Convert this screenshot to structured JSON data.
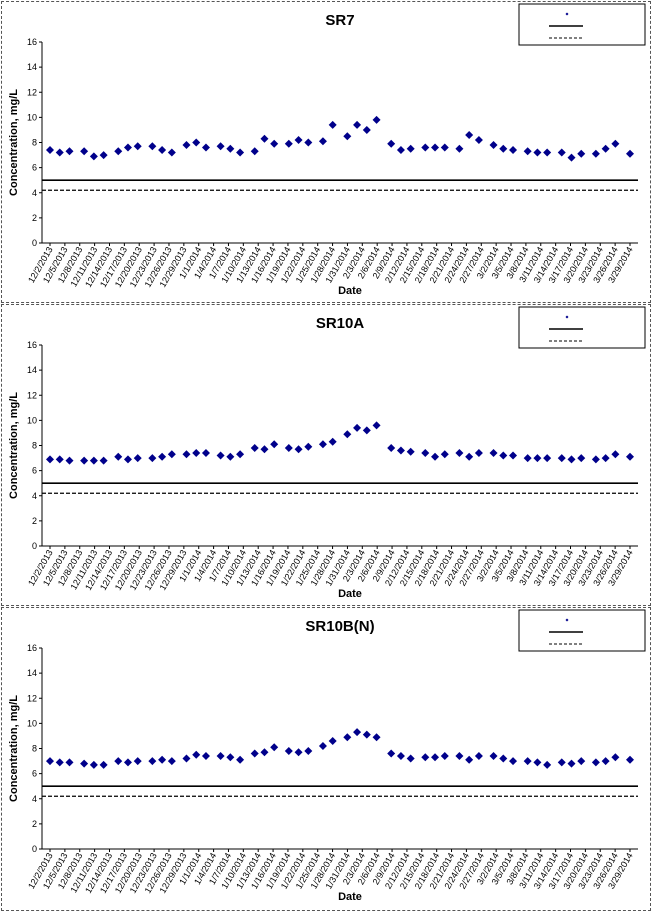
{
  "chart_data": [
    {
      "type": "scatter",
      "title": "SR7",
      "xlabel": "Date",
      "ylabel": "Concentration, mg/L",
      "ylim": [
        0,
        16
      ],
      "yticks": [
        0,
        2,
        4,
        6,
        8,
        10,
        12,
        14,
        16
      ],
      "xlim": [
        "2013-12-02",
        "2014-03-31"
      ],
      "x_tick_labels": [
        "12/2/2013",
        "12/5/2013",
        "12/8/2013",
        "12/11/2013",
        "12/14/2013",
        "12/17/2013",
        "12/20/2013",
        "12/23/2013",
        "12/26/2013",
        "12/29/2013",
        "1/1/2014",
        "1/4/2014",
        "1/7/2014",
        "1/10/2014",
        "1/13/2014",
        "1/16/2014",
        "1/19/2014",
        "1/22/2014",
        "1/25/2014",
        "1/28/2014",
        "1/31/2014",
        "2/3/2014",
        "2/6/2014",
        "2/9/2014",
        "2/12/2014",
        "2/15/2014",
        "2/18/2014",
        "2/21/2014",
        "2/24/2014",
        "2/27/2014",
        "3/2/2014",
        "3/5/2014",
        "3/8/2014",
        "3/11/2014",
        "3/14/2014",
        "3/17/2014",
        "3/20/2014",
        "3/23/2014",
        "3/26/2014",
        "3/29/2014"
      ],
      "grid": false,
      "legend_position": "top-right",
      "marker_color": "#00008b",
      "points": [
        [
          "2013-12-02",
          7.4
        ],
        [
          "2013-12-04",
          7.2
        ],
        [
          "2013-12-06",
          7.3
        ],
        [
          "2013-12-09",
          7.3
        ],
        [
          "2013-12-11",
          6.9
        ],
        [
          "2013-12-13",
          7.0
        ],
        [
          "2013-12-16",
          7.3
        ],
        [
          "2013-12-18",
          7.6
        ],
        [
          "2013-12-20",
          7.7
        ],
        [
          "2013-12-23",
          7.7
        ],
        [
          "2013-12-25",
          7.4
        ],
        [
          "2013-12-27",
          7.2
        ],
        [
          "2013-12-30",
          7.8
        ],
        [
          "2014-01-01",
          8.0
        ],
        [
          "2014-01-03",
          7.6
        ],
        [
          "2014-01-06",
          7.7
        ],
        [
          "2014-01-08",
          7.5
        ],
        [
          "2014-01-10",
          7.2
        ],
        [
          "2014-01-13",
          7.3
        ],
        [
          "2014-01-15",
          8.3
        ],
        [
          "2014-01-17",
          7.9
        ],
        [
          "2014-01-20",
          7.9
        ],
        [
          "2014-01-22",
          8.2
        ],
        [
          "2014-01-24",
          8.0
        ],
        [
          "2014-01-27",
          8.1
        ],
        [
          "2014-01-29",
          9.4
        ],
        [
          "2014-02-01",
          8.5
        ],
        [
          "2014-02-03",
          9.4
        ],
        [
          "2014-02-05",
          9.0
        ],
        [
          "2014-02-07",
          9.8
        ],
        [
          "2014-02-10",
          7.9
        ],
        [
          "2014-02-12",
          7.4
        ],
        [
          "2014-02-14",
          7.5
        ],
        [
          "2014-02-17",
          7.6
        ],
        [
          "2014-02-19",
          7.6
        ],
        [
          "2014-02-21",
          7.6
        ],
        [
          "2014-02-24",
          7.5
        ],
        [
          "2014-02-26",
          8.6
        ],
        [
          "2014-02-28",
          8.2
        ],
        [
          "2014-03-03",
          7.8
        ],
        [
          "2014-03-05",
          7.5
        ],
        [
          "2014-03-07",
          7.4
        ],
        [
          "2014-03-10",
          7.3
        ],
        [
          "2014-03-12",
          7.2
        ],
        [
          "2014-03-14",
          7.2
        ],
        [
          "2014-03-17",
          7.2
        ],
        [
          "2014-03-19",
          6.8
        ],
        [
          "2014-03-21",
          7.1
        ],
        [
          "2014-03-24",
          7.1
        ],
        [
          "2014-03-26",
          7.5
        ],
        [
          "2014-03-28",
          7.9
        ],
        [
          "2014-03-31",
          7.1
        ]
      ],
      "solid_line_y": 5.0,
      "dashed_line_y": 4.2
    },
    {
      "type": "scatter",
      "title": "SR10A",
      "xlabel": "Date",
      "ylabel": "Concentration, mg/L",
      "ylim": [
        0,
        16
      ],
      "yticks": [
        0,
        2,
        4,
        6,
        8,
        10,
        12,
        14,
        16
      ],
      "xlim": [
        "2013-12-02",
        "2014-03-31"
      ],
      "x_tick_labels": [
        "12/2/2013",
        "12/5/2013",
        "12/8/2013",
        "12/11/2013",
        "12/14/2013",
        "12/17/2013",
        "12/20/2013",
        "12/23/2013",
        "12/26/2013",
        "12/29/2013",
        "1/1/2014",
        "1/4/2014",
        "1/7/2014",
        "1/10/2014",
        "1/13/2014",
        "1/16/2014",
        "1/19/2014",
        "1/22/2014",
        "1/25/2014",
        "1/28/2014",
        "1/31/2014",
        "2/3/2014",
        "2/6/2014",
        "2/9/2014",
        "2/12/2014",
        "2/15/2014",
        "2/18/2014",
        "2/21/2014",
        "2/24/2014",
        "2/27/2014",
        "3/2/2014",
        "3/5/2014",
        "3/8/2014",
        "3/11/2014",
        "3/14/2014",
        "3/17/2014",
        "3/20/2014",
        "3/23/2014",
        "3/26/2014",
        "3/29/2014"
      ],
      "grid": false,
      "legend_position": "top-right",
      "marker_color": "#00008b",
      "points": [
        [
          "2013-12-02",
          6.9
        ],
        [
          "2013-12-04",
          6.9
        ],
        [
          "2013-12-06",
          6.8
        ],
        [
          "2013-12-09",
          6.8
        ],
        [
          "2013-12-11",
          6.8
        ],
        [
          "2013-12-13",
          6.8
        ],
        [
          "2013-12-16",
          7.1
        ],
        [
          "2013-12-18",
          6.9
        ],
        [
          "2013-12-20",
          7.0
        ],
        [
          "2013-12-23",
          7.0
        ],
        [
          "2013-12-25",
          7.1
        ],
        [
          "2013-12-27",
          7.3
        ],
        [
          "2013-12-30",
          7.3
        ],
        [
          "2014-01-01",
          7.4
        ],
        [
          "2014-01-03",
          7.4
        ],
        [
          "2014-01-06",
          7.2
        ],
        [
          "2014-01-08",
          7.1
        ],
        [
          "2014-01-10",
          7.3
        ],
        [
          "2014-01-13",
          7.8
        ],
        [
          "2014-01-15",
          7.7
        ],
        [
          "2014-01-17",
          8.1
        ],
        [
          "2014-01-20",
          7.8
        ],
        [
          "2014-01-22",
          7.7
        ],
        [
          "2014-01-24",
          7.9
        ],
        [
          "2014-01-27",
          8.1
        ],
        [
          "2014-01-29",
          8.3
        ],
        [
          "2014-02-01",
          8.9
        ],
        [
          "2014-02-03",
          9.4
        ],
        [
          "2014-02-05",
          9.2
        ],
        [
          "2014-02-07",
          9.6
        ],
        [
          "2014-02-10",
          7.8
        ],
        [
          "2014-02-12",
          7.6
        ],
        [
          "2014-02-14",
          7.5
        ],
        [
          "2014-02-17",
          7.4
        ],
        [
          "2014-02-19",
          7.1
        ],
        [
          "2014-02-21",
          7.3
        ],
        [
          "2014-02-24",
          7.4
        ],
        [
          "2014-02-26",
          7.1
        ],
        [
          "2014-02-28",
          7.4
        ],
        [
          "2014-03-03",
          7.4
        ],
        [
          "2014-03-05",
          7.2
        ],
        [
          "2014-03-07",
          7.2
        ],
        [
          "2014-03-10",
          7.0
        ],
        [
          "2014-03-12",
          7.0
        ],
        [
          "2014-03-14",
          7.0
        ],
        [
          "2014-03-17",
          7.0
        ],
        [
          "2014-03-19",
          6.9
        ],
        [
          "2014-03-21",
          7.0
        ],
        [
          "2014-03-24",
          6.9
        ],
        [
          "2014-03-26",
          7.0
        ],
        [
          "2014-03-28",
          7.3
        ],
        [
          "2014-03-31",
          7.1
        ]
      ],
      "solid_line_y": 5.0,
      "dashed_line_y": 4.2
    },
    {
      "type": "scatter",
      "title": "SR10B(N)",
      "xlabel": "Date",
      "ylabel": "Concentration, mg/L",
      "ylim": [
        0,
        16
      ],
      "yticks": [
        0,
        2,
        4,
        6,
        8,
        10,
        12,
        14,
        16
      ],
      "xlim": [
        "2013-12-02",
        "2014-03-31"
      ],
      "x_tick_labels": [
        "12/2/2013",
        "12/5/2013",
        "12/8/2013",
        "12/11/2013",
        "12/14/2013",
        "12/17/2013",
        "12/20/2013",
        "12/23/2013",
        "12/26/2013",
        "12/29/2013",
        "1/1/2014",
        "1/4/2014",
        "1/7/2014",
        "1/10/2014",
        "1/13/2014",
        "1/16/2014",
        "1/19/2014",
        "1/22/2014",
        "1/25/2014",
        "1/28/2014",
        "1/31/2014",
        "2/3/2014",
        "2/6/2014",
        "2/9/2014",
        "2/12/2014",
        "2/15/2014",
        "2/18/2014",
        "2/21/2014",
        "2/24/2014",
        "2/27/2014",
        "3/2/2014",
        "3/5/2014",
        "3/8/2014",
        "3/11/2014",
        "3/14/2014",
        "3/17/2014",
        "3/20/2014",
        "3/23/2014",
        "3/26/2014",
        "3/29/2014"
      ],
      "grid": false,
      "legend_position": "top-right",
      "marker_color": "#00008b",
      "points": [
        [
          "2013-12-02",
          7.0
        ],
        [
          "2013-12-04",
          6.9
        ],
        [
          "2013-12-06",
          6.9
        ],
        [
          "2013-12-09",
          6.8
        ],
        [
          "2013-12-11",
          6.7
        ],
        [
          "2013-12-13",
          6.7
        ],
        [
          "2013-12-16",
          7.0
        ],
        [
          "2013-12-18",
          6.9
        ],
        [
          "2013-12-20",
          7.0
        ],
        [
          "2013-12-23",
          7.0
        ],
        [
          "2013-12-25",
          7.1
        ],
        [
          "2013-12-27",
          7.0
        ],
        [
          "2013-12-30",
          7.2
        ],
        [
          "2014-01-01",
          7.5
        ],
        [
          "2014-01-03",
          7.4
        ],
        [
          "2014-01-06",
          7.4
        ],
        [
          "2014-01-08",
          7.3
        ],
        [
          "2014-01-10",
          7.1
        ],
        [
          "2014-01-13",
          7.6
        ],
        [
          "2014-01-15",
          7.7
        ],
        [
          "2014-01-17",
          8.1
        ],
        [
          "2014-01-20",
          7.8
        ],
        [
          "2014-01-22",
          7.7
        ],
        [
          "2014-01-24",
          7.8
        ],
        [
          "2014-01-27",
          8.2
        ],
        [
          "2014-01-29",
          8.6
        ],
        [
          "2014-02-01",
          8.9
        ],
        [
          "2014-02-03",
          9.3
        ],
        [
          "2014-02-05",
          9.1
        ],
        [
          "2014-02-07",
          8.9
        ],
        [
          "2014-02-10",
          7.6
        ],
        [
          "2014-02-12",
          7.4
        ],
        [
          "2014-02-14",
          7.2
        ],
        [
          "2014-02-17",
          7.3
        ],
        [
          "2014-02-19",
          7.3
        ],
        [
          "2014-02-21",
          7.4
        ],
        [
          "2014-02-24",
          7.4
        ],
        [
          "2014-02-26",
          7.1
        ],
        [
          "2014-02-28",
          7.4
        ],
        [
          "2014-03-03",
          7.4
        ],
        [
          "2014-03-05",
          7.2
        ],
        [
          "2014-03-07",
          7.0
        ],
        [
          "2014-03-10",
          7.0
        ],
        [
          "2014-03-12",
          6.9
        ],
        [
          "2014-03-14",
          6.7
        ],
        [
          "2014-03-17",
          6.9
        ],
        [
          "2014-03-19",
          6.8
        ],
        [
          "2014-03-21",
          7.0
        ],
        [
          "2014-03-24",
          6.9
        ],
        [
          "2014-03-26",
          7.0
        ],
        [
          "2014-03-28",
          7.3
        ],
        [
          "2014-03-31",
          7.1
        ]
      ],
      "solid_line_y": 5.0,
      "dashed_line_y": 4.2
    }
  ]
}
